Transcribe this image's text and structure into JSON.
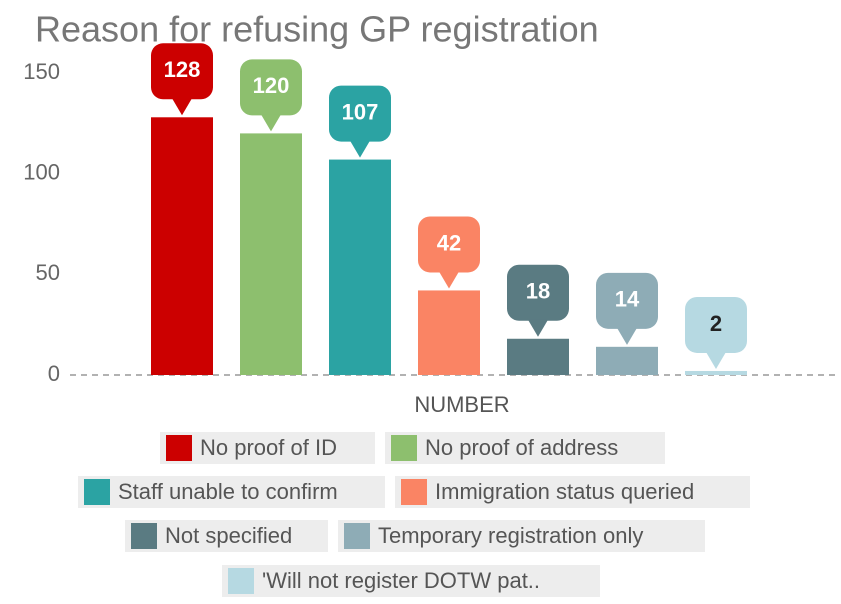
{
  "chart_data": {
    "type": "bar",
    "title": "Reason for refusing GP registration",
    "categories": [
      "NUMBER"
    ],
    "series": [
      {
        "name": "No proof of ID",
        "color": "#cc0000",
        "values": [
          128
        ]
      },
      {
        "name": "No proof of address",
        "color": "#8dbf6e",
        "values": [
          120
        ]
      },
      {
        "name": "Staff unable to confirm",
        "color": "#2ba3a3",
        "values": [
          107
        ]
      },
      {
        "name": "Immigration status queried",
        "color": "#fa8464",
        "values": [
          42
        ]
      },
      {
        "name": "Not specified",
        "color": "#5a7b82",
        "values": [
          18
        ]
      },
      {
        "name": "Temporary registration only",
        "color": "#8eacb6",
        "values": [
          14
        ]
      },
      {
        "name": "'Will not register DOTW pat..",
        "color": "#b6d9e2",
        "values": [
          2
        ]
      }
    ],
    "ylim": [
      0,
      150
    ],
    "yticks": [
      0,
      50,
      100,
      150
    ],
    "grid": false,
    "legend": "bottom"
  }
}
